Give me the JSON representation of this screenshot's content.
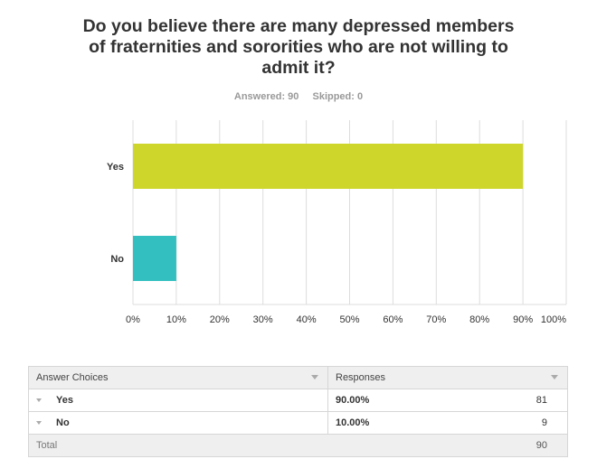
{
  "title": "Do you believe there are many depressed members of fraternities and sororities who are not willing to admit it?",
  "meta": {
    "answered": "Answered: 90",
    "skipped": "Skipped: 0"
  },
  "colors": {
    "yes": "#cfd62b",
    "no": "#33bfbf",
    "grid": "#dddddd"
  },
  "chart_data": {
    "type": "bar",
    "orientation": "horizontal",
    "categories": [
      "Yes",
      "No"
    ],
    "values": [
      90,
      10
    ],
    "xlim": [
      0,
      100
    ],
    "xticks": [
      "0%",
      "10%",
      "20%",
      "30%",
      "40%",
      "50%",
      "60%",
      "70%",
      "80%",
      "90%",
      "100%"
    ],
    "grid": true,
    "legend": "none"
  },
  "table": {
    "headers": [
      "Answer Choices",
      "Responses"
    ],
    "rows": [
      {
        "choice": "Yes",
        "percent": "90.00%",
        "count": "81"
      },
      {
        "choice": "No",
        "percent": "10.00%",
        "count": "9"
      }
    ],
    "total_label": "Total",
    "total_value": "90"
  }
}
